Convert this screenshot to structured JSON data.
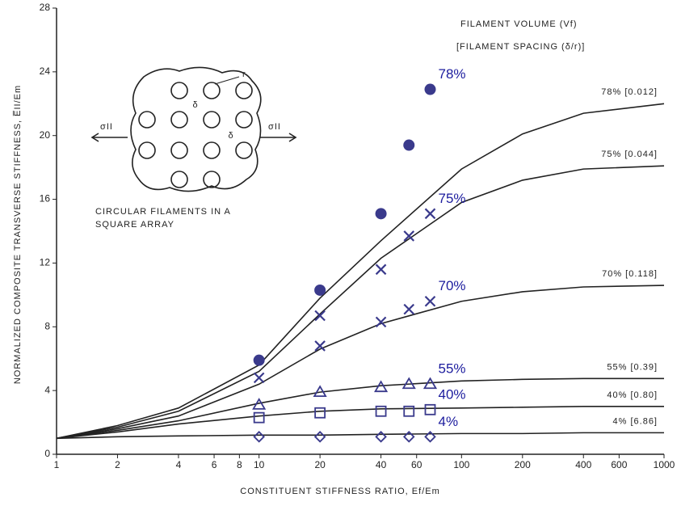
{
  "chart_data": {
    "type": "line",
    "xlabel": "CONSTITUENT STIFFNESS RATIO, Ef/Em",
    "ylabel": "NORMALIZED COMPOSITE TRANSVERSE STIFFNESS, E̅II/Em",
    "xscale": "log",
    "xlim": [
      1,
      1000
    ],
    "ylim": [
      0,
      28
    ],
    "xticks": [
      1,
      2,
      4,
      6,
      8,
      10,
      20,
      40,
      60,
      100,
      200,
      400,
      600,
      1000
    ],
    "yticks": [
      0,
      4,
      8,
      12,
      16,
      20,
      24,
      28
    ],
    "legend_title": "FILAMENT VOLUME (Vf)",
    "legend_subtitle": "[FILAMENT SPACING (δ/r)]",
    "line_color": "#222222",
    "series": [
      {
        "name": "78% [0.012]",
        "x": [
          1,
          2,
          4,
          10,
          20,
          40,
          100,
          200,
          400,
          1000
        ],
        "values": [
          1,
          1.8,
          2.9,
          5.6,
          9.8,
          13.4,
          17.9,
          20.1,
          21.4,
          22
        ]
      },
      {
        "name": "75% [0.044]",
        "x": [
          1,
          2,
          4,
          10,
          20,
          40,
          100,
          200,
          400,
          1000
        ],
        "values": [
          1,
          1.7,
          2.7,
          5.2,
          8.8,
          12.3,
          15.8,
          17.2,
          17.9,
          18.1
        ]
      },
      {
        "name": "70% [0.118]",
        "x": [
          1,
          2,
          4,
          10,
          20,
          40,
          100,
          200,
          400,
          1000
        ],
        "values": [
          1,
          1.6,
          2.4,
          4.4,
          6.6,
          8.2,
          9.6,
          10.2,
          10.5,
          10.6
        ]
      },
      {
        "name": "55% [0.39]",
        "x": [
          1,
          2,
          4,
          10,
          20,
          40,
          100,
          200,
          400,
          1000
        ],
        "values": [
          1,
          1.5,
          2.1,
          3.2,
          3.9,
          4.3,
          4.6,
          4.7,
          4.75,
          4.75
        ]
      },
      {
        "name": "40% [0.80]",
        "x": [
          1,
          2,
          4,
          10,
          20,
          40,
          100,
          200,
          400,
          1000
        ],
        "values": [
          1,
          1.4,
          1.9,
          2.4,
          2.7,
          2.85,
          2.9,
          2.95,
          3,
          3
        ]
      },
      {
        "name": "4% [6.86]",
        "x": [
          1,
          2,
          4,
          10,
          20,
          40,
          100,
          200,
          400,
          1000
        ],
        "values": [
          1,
          1.1,
          1.15,
          1.2,
          1.2,
          1.25,
          1.3,
          1.3,
          1.35,
          1.35
        ]
      }
    ],
    "points": [
      {
        "name": "78%",
        "marker": "circle",
        "color": "#3a3a8c",
        "x": [
          10,
          20,
          40,
          55,
          70
        ],
        "values": [
          5.9,
          10.3,
          15.1,
          19.4,
          22.9
        ]
      },
      {
        "name": "75%",
        "marker": "x",
        "color": "#3a3a8c",
        "x": [
          10,
          20,
          40,
          55,
          70
        ],
        "values": [
          4.8,
          8.7,
          11.6,
          13.7,
          15.1
        ]
      },
      {
        "name": "70%",
        "marker": "x",
        "color": "#3a3a8c",
        "x": [
          20,
          40,
          55,
          70
        ],
        "values": [
          6.8,
          8.3,
          9.1,
          9.6
        ]
      },
      {
        "name": "55%",
        "marker": "triangle",
        "color": "#3a3a8c",
        "x": [
          10,
          20,
          40,
          55,
          70
        ],
        "values": [
          3.1,
          3.9,
          4.2,
          4.4,
          4.4
        ]
      },
      {
        "name": "40%",
        "marker": "square",
        "color": "#3a3a8c",
        "x": [
          10,
          20,
          40,
          55,
          70
        ],
        "values": [
          2.3,
          2.6,
          2.7,
          2.7,
          2.8
        ]
      },
      {
        "name": "4%",
        "marker": "diamond",
        "color": "#3a3a8c",
        "x": [
          10,
          20,
          40,
          55,
          70
        ],
        "values": [
          1.1,
          1.1,
          1.1,
          1.1,
          1.1
        ]
      }
    ],
    "inset": {
      "caption": "CIRCULAR FILAMENTS IN A",
      "caption2": "SQUARE ARRAY",
      "sigma": "σII",
      "delta": "δ",
      "r": "r"
    }
  }
}
